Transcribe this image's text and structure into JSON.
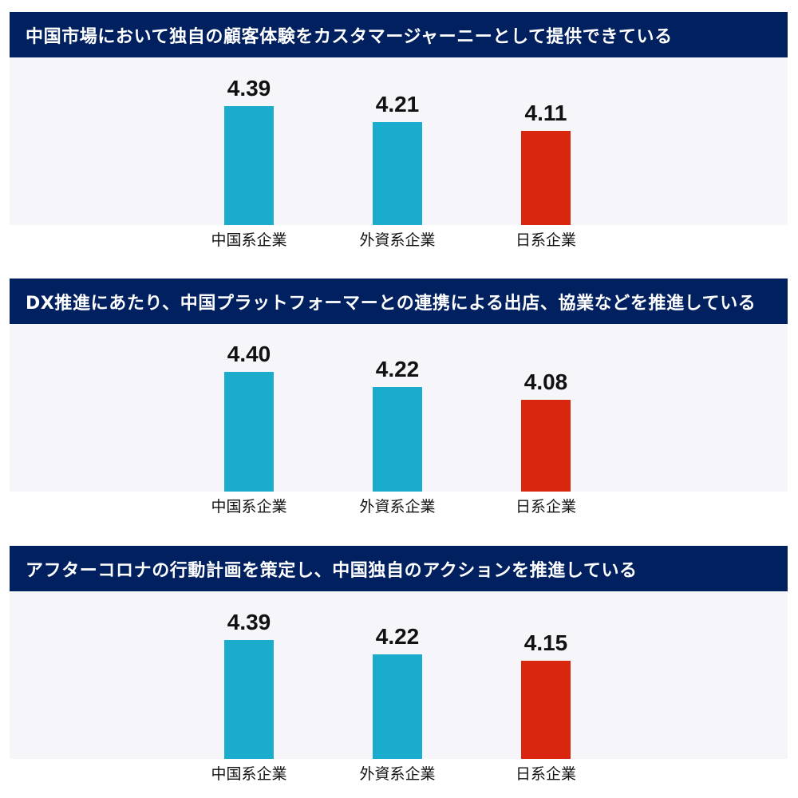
{
  "colors": {
    "header_bg": "#00205f",
    "header_text": "#ffffff",
    "plot_bg": "#f6f5fa",
    "bar_foreign": "#1aabcd",
    "bar_japanese": "#d9260e",
    "text": "#111111"
  },
  "panels": [
    {
      "title": "中国市場において独自の顧客体験をカスタマージャーニーとして提供できている",
      "bars": [
        {
          "label": "中国系企業",
          "value": "4.39",
          "color": "#1aabcd"
        },
        {
          "label": "外資系企業",
          "value": "4.21",
          "color": "#1aabcd"
        },
        {
          "label": "日系企業",
          "value": "4.11",
          "color": "#d9260e"
        }
      ]
    },
    {
      "title": "DX推進にあたり、中国プラットフォーマーとの連携による出店、協業などを推進している",
      "bars": [
        {
          "label": "中国系企業",
          "value": "4.40",
          "color": "#1aabcd"
        },
        {
          "label": "外資系企業",
          "value": "4.22",
          "color": "#1aabcd"
        },
        {
          "label": "日系企業",
          "value": "4.08",
          "color": "#d9260e"
        }
      ]
    },
    {
      "title": "アフターコロナの行動計画を策定し、中国独自のアクションを推進している",
      "bars": [
        {
          "label": "中国系企業",
          "value": "4.39",
          "color": "#1aabcd"
        },
        {
          "label": "外資系企業",
          "value": "4.22",
          "color": "#1aabcd"
        },
        {
          "label": "日系企業",
          "value": "4.15",
          "color": "#d9260e"
        }
      ]
    }
  ],
  "chart_data": [
    {
      "type": "bar",
      "title": "中国市場において独自の顧客体験をカスタマージャーニーとして提供できている",
      "categories": [
        "中国系企業",
        "外資系企業",
        "日系企業"
      ],
      "values": [
        4.39,
        4.21,
        4.11
      ],
      "colors": [
        "#1aabcd",
        "#1aabcd",
        "#d9260e"
      ],
      "xlabel": "",
      "ylabel": "",
      "ylim": [
        3.04,
        4.5
      ],
      "grid": false,
      "legend": "none",
      "data_labels": true
    },
    {
      "type": "bar",
      "title": "DX推進にあたり、中国プラットフォーマーとの連携による出店、協業などを推進している",
      "categories": [
        "中国系企業",
        "外資系企業",
        "日系企業"
      ],
      "values": [
        4.4,
        4.22,
        4.08
      ],
      "colors": [
        "#1aabcd",
        "#1aabcd",
        "#d9260e"
      ],
      "xlabel": "",
      "ylabel": "",
      "ylim": [
        3.04,
        4.5
      ],
      "grid": false,
      "legend": "none",
      "data_labels": true
    },
    {
      "type": "bar",
      "title": "アフターコロナの行動計画を策定し、中国独自のアクションを推進している",
      "categories": [
        "中国系企業",
        "外資系企業",
        "日系企業"
      ],
      "values": [
        4.39,
        4.22,
        4.15
      ],
      "colors": [
        "#1aabcd",
        "#1aabcd",
        "#d9260e"
      ],
      "xlabel": "",
      "ylabel": "",
      "ylim": [
        3.04,
        4.5
      ],
      "grid": false,
      "legend": "none",
      "data_labels": true
    }
  ]
}
